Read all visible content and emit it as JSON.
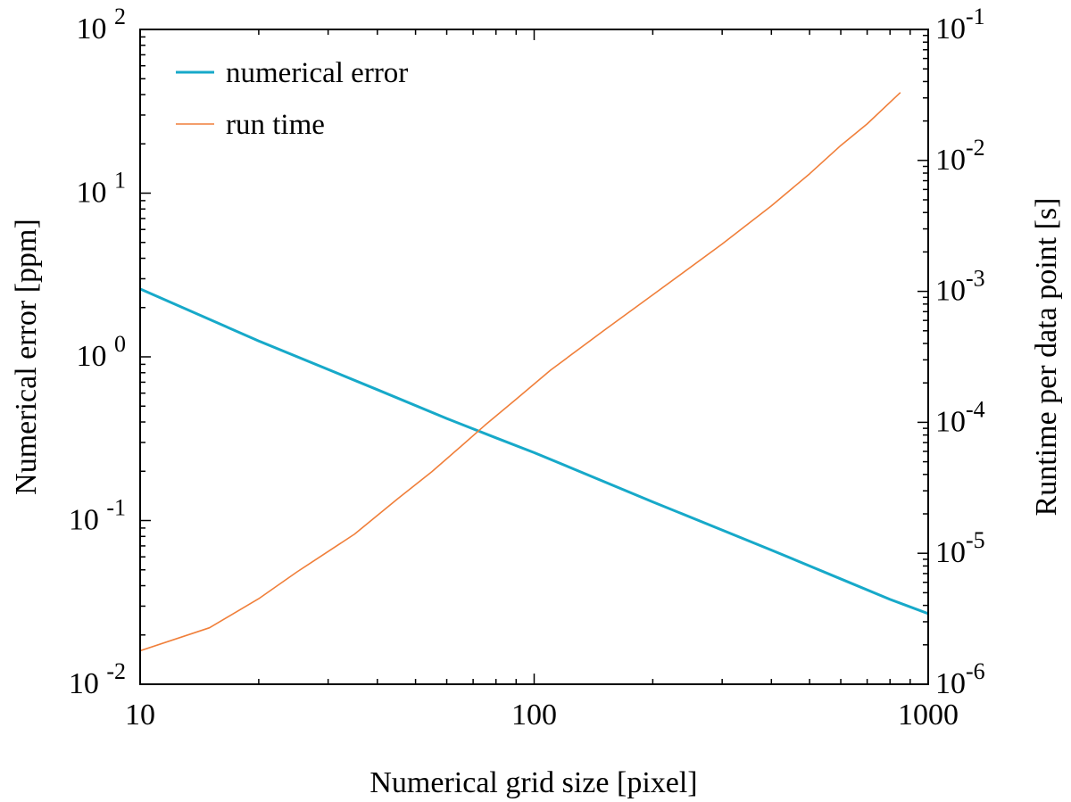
{
  "chart_data": {
    "type": "line",
    "xlabel": "Numerical grid size [pixel]",
    "ylabel_left": "Numerical error [ppm]",
    "ylabel_right": "Runtime per data point [s]",
    "xscale": "log",
    "yscale_left": "log",
    "yscale_right": "log",
    "xlim": [
      10,
      1000
    ],
    "ylim_left": [
      0.01,
      100
    ],
    "ylim_right": [
      1e-06,
      0.1
    ],
    "grid": false,
    "legend_position": "top-left",
    "x_ticks": [
      {
        "value": 10,
        "label": "10"
      },
      {
        "value": 100,
        "label": "100"
      },
      {
        "value": 1000,
        "label": "1000"
      }
    ],
    "y_left_ticks": [
      {
        "value": 100,
        "base": "10",
        "exp": "2"
      },
      {
        "value": 10,
        "base": "10",
        "exp": "1"
      },
      {
        "value": 1,
        "base": "10",
        "exp": "0"
      },
      {
        "value": 0.1,
        "base": "10",
        "exp": "-1"
      },
      {
        "value": 0.01,
        "base": "10",
        "exp": "-2"
      }
    ],
    "y_right_ticks": [
      {
        "value": 0.1,
        "base": "10",
        "exp": "-1"
      },
      {
        "value": 0.01,
        "base": "10",
        "exp": "-2"
      },
      {
        "value": 0.001,
        "base": "10",
        "exp": "-3"
      },
      {
        "value": 0.0001,
        "base": "10",
        "exp": "-4"
      },
      {
        "value": 1e-05,
        "base": "10",
        "exp": "-5"
      },
      {
        "value": 1e-06,
        "base": "10",
        "exp": "-6"
      }
    ],
    "series": [
      {
        "name": "numerical error",
        "axis": "left",
        "color": "#17a9c9",
        "x": [
          10,
          20,
          40,
          60,
          80,
          100,
          200,
          400,
          600,
          800,
          1000
        ],
        "y": [
          2.6,
          1.25,
          0.63,
          0.42,
          0.32,
          0.26,
          0.13,
          0.066,
          0.044,
          0.033,
          0.027
        ]
      },
      {
        "name": "run time",
        "axis": "right",
        "color": "#f07f3a",
        "x": [
          10,
          15,
          20,
          25,
          35,
          45,
          55,
          65,
          75,
          90,
          110,
          150,
          200,
          300,
          400,
          500,
          600,
          700,
          850
        ],
        "y": [
          1.8e-06,
          2.7e-06,
          4.5e-06,
          7.2e-06,
          1.4e-05,
          2.6e-05,
          4.2e-05,
          6.5e-05,
          9.5e-05,
          0.00015,
          0.00025,
          0.0005,
          0.00094,
          0.0023,
          0.0045,
          0.0079,
          0.013,
          0.019,
          0.033
        ]
      }
    ]
  }
}
